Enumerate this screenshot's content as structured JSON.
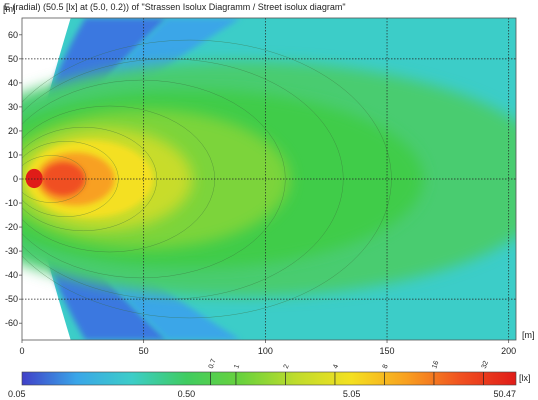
{
  "title": "E (radial) (50.5 [lx] at (5.0, 0.2)) of \"Strassen Isolux Diagramm / Street isolux diagram\"",
  "chart_data": {
    "type": "heatmap",
    "xlim": [
      0,
      203
    ],
    "ylim": [
      -67,
      67
    ],
    "x_ticks": [
      0,
      50,
      100,
      150,
      200
    ],
    "y_ticks": [
      60,
      50,
      40,
      30,
      20,
      10,
      0,
      -10,
      -20,
      -30,
      -40,
      -50,
      -60
    ],
    "x_unit": "[m]",
    "y_unit": "[m]",
    "dashed_gridlines": {
      "x": [
        50,
        100,
        150,
        200
      ],
      "y": [
        50,
        0,
        -50
      ]
    },
    "contour_levels": [
      0.7,
      1,
      2,
      4,
      8,
      16,
      32
    ],
    "colorbar": {
      "unit": "[lx]",
      "labels": [
        "0.05",
        "0.50",
        "5.05",
        "50.47"
      ],
      "min": 0.05,
      "max": 50.47,
      "scale": "log",
      "colors": [
        "#4040c8",
        "#3aa6e8",
        "#3ccdc8",
        "#40cc60",
        "#6ad23c",
        "#c0dc2c",
        "#f4e020",
        "#f8a020",
        "#f05020",
        "#e01c18"
      ]
    },
    "peak": {
      "value": 50.5,
      "x": 5.0,
      "y": 0.2
    }
  }
}
